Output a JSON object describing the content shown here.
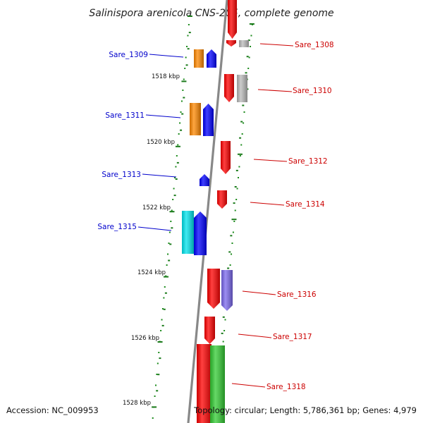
{
  "title": "Salinispora arenicola CNS-205, complete genome",
  "footer": {
    "accession": "Accession: NC_009953",
    "topology": "Topology: circular; Length: 5,786,361 bp; Genes: 4,979"
  },
  "colors": {
    "backbone": "#888888",
    "tick": "#1a7a1a",
    "dot": "#1a8a1a",
    "left_label": "#0000cc",
    "right_label": "#cc0000"
  },
  "kbp_marks": [
    "1518 kbp",
    "1520 kbp",
    "1522 kbp",
    "1524 kbp",
    "1526 kbp",
    "1528 kbp"
  ],
  "left_labels": [
    "Sare_1309",
    "Sare_1311",
    "Sare_1313",
    "Sare_1315"
  ],
  "right_labels": [
    "Sare_1308",
    "Sare_1310",
    "Sare_1312",
    "Sare_1314",
    "Sare_1316",
    "Sare_1317",
    "Sare_1318"
  ],
  "features": [
    {
      "color": "#ff0000",
      "dir": "down"
    },
    {
      "color": "#ff0000",
      "dir": "down"
    },
    {
      "color": "#bbbbbb",
      "dir": "none"
    },
    {
      "color": "#ff8800",
      "dir": "none"
    },
    {
      "color": "#0000ff",
      "dir": "up"
    },
    {
      "color": "#ff0000",
      "dir": "down"
    },
    {
      "color": "#bbbbbb",
      "dir": "none"
    },
    {
      "color": "#ff8800",
      "dir": "none"
    },
    {
      "color": "#0000ff",
      "dir": "up"
    },
    {
      "color": "#ff0000",
      "dir": "down"
    },
    {
      "color": "#0000ff",
      "dir": "up"
    },
    {
      "color": "#ff0000",
      "dir": "down"
    },
    {
      "color": "#00e5ee",
      "dir": "none"
    },
    {
      "color": "#0000ff",
      "dir": "up"
    },
    {
      "color": "#ff0000",
      "dir": "down"
    },
    {
      "color": "#7b68ee",
      "dir": "down"
    },
    {
      "color": "#ff0000",
      "dir": "down"
    },
    {
      "color": "#ff0000",
      "dir": "down"
    },
    {
      "color": "#33cc33",
      "dir": "down"
    }
  ]
}
